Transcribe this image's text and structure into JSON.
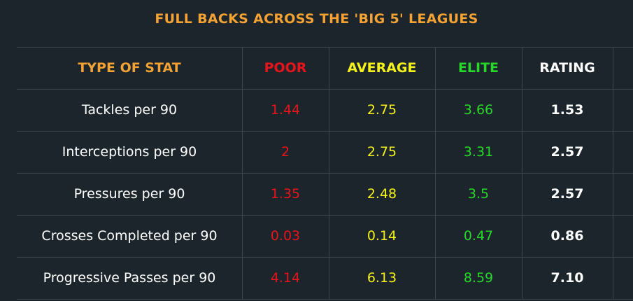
{
  "title": "FULL BACKS ACROSS THE 'BIG 5' LEAGUES",
  "colors": {
    "background": "#1b252b",
    "title": "#f3a233",
    "type_header": "#f3a233",
    "poor": "#e8141b",
    "average": "#f5f21b",
    "elite": "#27d82a",
    "rating": "#ffffff",
    "grid": "#3b474e"
  },
  "headers": {
    "type": "TYPE OF STAT",
    "poor": "POOR",
    "average": "AVERAGE",
    "elite": "ELITE",
    "rating": "RATING"
  },
  "rows": [
    {
      "stat": "Tackles per 90",
      "poor": "1.44",
      "average": "2.75",
      "elite": "3.66",
      "rating": "1.53"
    },
    {
      "stat": "Interceptions per 90",
      "poor": "2",
      "average": "2.75",
      "elite": "3.31",
      "rating": "2.57"
    },
    {
      "stat": "Pressures per 90",
      "poor": "1.35",
      "average": "2.48",
      "elite": "3.5",
      "rating": "2.57"
    },
    {
      "stat": "Crosses Completed per 90",
      "poor": "0.03",
      "average": "0.14",
      "elite": "0.47",
      "rating": "0.86"
    },
    {
      "stat": "Progressive Passes per 90",
      "poor": "4.14",
      "average": "6.13",
      "elite": "8.59",
      "rating": "7.10"
    }
  ]
}
